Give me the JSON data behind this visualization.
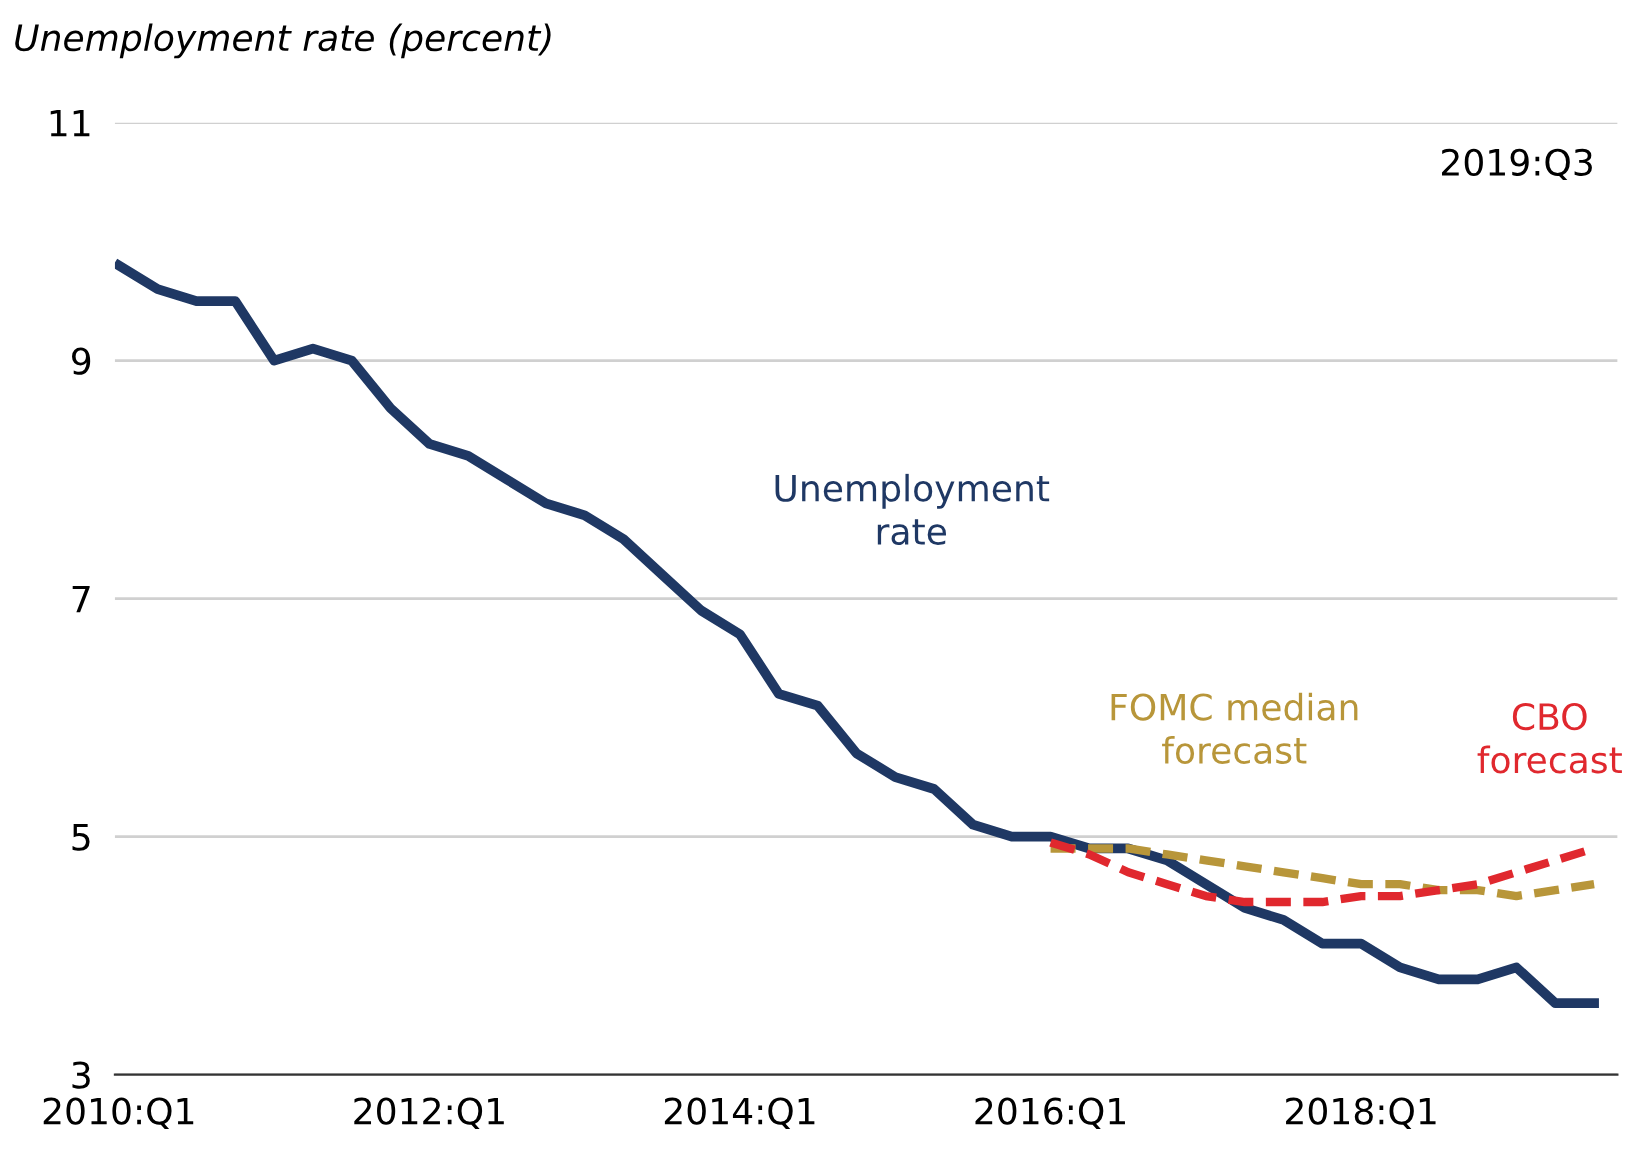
{
  "chart_data": {
    "type": "line",
    "ylabel": "Unemployment rate (percent)",
    "annotations": [
      "2019:Q3"
    ],
    "categories": [
      "2010:Q1",
      null,
      null,
      null,
      null,
      null,
      null,
      null,
      "2012:Q1",
      null,
      null,
      null,
      null,
      null,
      null,
      null,
      "2014:Q1",
      null,
      null,
      null,
      null,
      null,
      null,
      null,
      "2016:Q1",
      null,
      null,
      null,
      null,
      null,
      null,
      null,
      "2018:Q1",
      null,
      null,
      null,
      null,
      null,
      null
    ],
    "ylim": [
      3,
      11
    ],
    "yticks": [
      3,
      5,
      7,
      9,
      11
    ],
    "grid": "y",
    "series": [
      {
        "name": "Unemployment rate",
        "color": "#1f3864",
        "line_style": "solid",
        "values": [
          9.8,
          9.6,
          9.5,
          9.5,
          9.0,
          9.1,
          9.0,
          8.6,
          8.3,
          8.2,
          8.0,
          7.8,
          7.7,
          7.5,
          7.2,
          6.9,
          6.7,
          6.2,
          6.1,
          5.7,
          5.5,
          5.4,
          5.1,
          5.0,
          5.0,
          4.9,
          4.9,
          4.8,
          4.6,
          4.4,
          4.3,
          4.1,
          4.1,
          3.9,
          3.8,
          3.8,
          3.9,
          3.6,
          3.6
        ]
      },
      {
        "name": "FOMC median forecast",
        "color": "#b8963a",
        "line_style": "dashed",
        "values": [
          null,
          null,
          null,
          null,
          null,
          null,
          null,
          null,
          null,
          null,
          null,
          null,
          null,
          null,
          null,
          null,
          null,
          null,
          null,
          null,
          null,
          null,
          null,
          null,
          4.9,
          4.9,
          4.9,
          4.85,
          4.8,
          4.75,
          4.7,
          4.65,
          4.6,
          4.6,
          4.55,
          4.55,
          4.5,
          4.55,
          4.6
        ]
      },
      {
        "name": "CBO forecast",
        "color": "#e0282e",
        "line_style": "dashed",
        "values": [
          null,
          null,
          null,
          null,
          null,
          null,
          null,
          null,
          null,
          null,
          null,
          null,
          null,
          null,
          null,
          null,
          null,
          null,
          null,
          null,
          null,
          null,
          null,
          null,
          4.95,
          4.85,
          4.7,
          4.6,
          4.5,
          4.45,
          4.45,
          4.45,
          4.5,
          4.5,
          4.55,
          4.6,
          4.7,
          4.8,
          4.9
        ]
      }
    ]
  }
}
